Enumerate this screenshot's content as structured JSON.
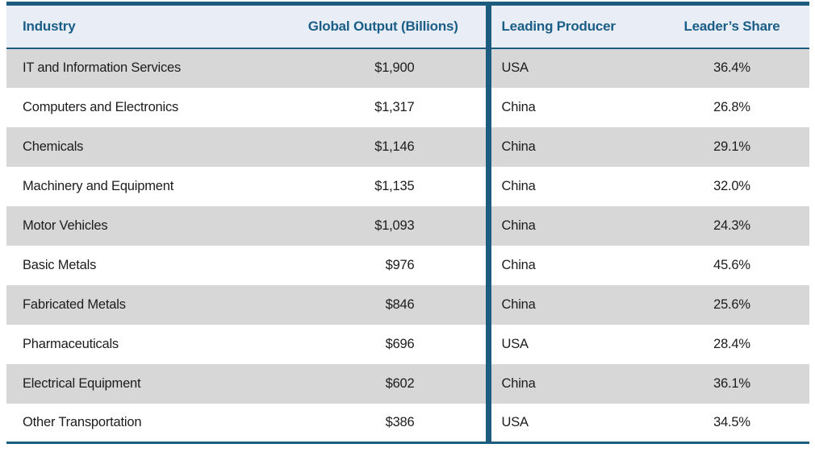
{
  "chart_data": {
    "type": "table",
    "columns": [
      "Industry",
      "Global Output (Billions)",
      "Leading Producer",
      "Leader’s Share"
    ],
    "rows": [
      [
        "IT and Information Services",
        "$1,900",
        "USA",
        "36.4%"
      ],
      [
        "Computers and Electronics",
        "$1,317",
        "China",
        "26.8%"
      ],
      [
        "Chemicals",
        "$1,146",
        "China",
        "29.1%"
      ],
      [
        "Machinery and Equipment",
        "$1,135",
        "China",
        "32.0%"
      ],
      [
        "Motor Vehicles",
        "$1,093",
        "China",
        "24.3%"
      ],
      [
        "Basic Metals",
        "$976",
        "China",
        "45.6%"
      ],
      [
        "Fabricated Metals",
        "$846",
        "China",
        "25.6%"
      ],
      [
        "Pharmaceuticals",
        "$696",
        "USA",
        "28.4%"
      ],
      [
        "Electrical Equipment",
        "$602",
        "China",
        "36.1%"
      ],
      [
        "Other Transportation",
        "$386",
        "USA",
        "34.5%"
      ]
    ]
  },
  "colors": {
    "border": "#1c5c7e",
    "header_text": "#1a5e87",
    "header_bg": "#e8edf6",
    "row_alt_bg": "#d7d7d7",
    "row_bg": "#ffffff",
    "body_text": "#1c1c1c"
  }
}
